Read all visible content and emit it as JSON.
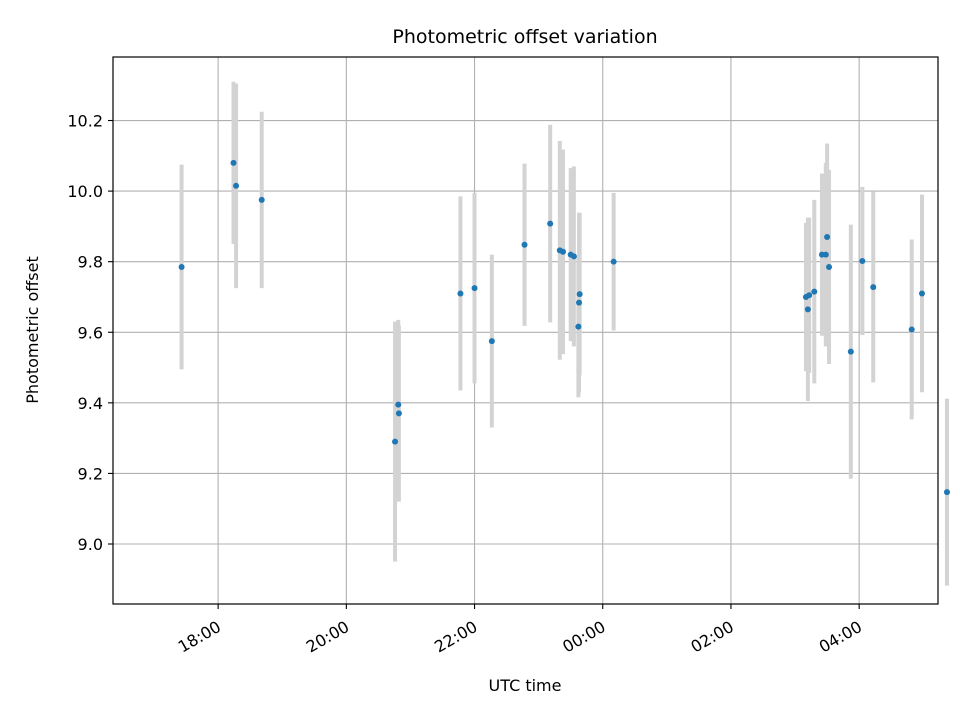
{
  "chart_data": {
    "type": "scatter",
    "title": "Photometric offset variation",
    "xlabel": "UTC time",
    "ylabel": "Photometric offset",
    "grid": true,
    "x_unit": "hours since 00:00 UTC (day 1)",
    "xlim": [
      16.36,
      29.23
    ],
    "ylim": [
      8.83,
      10.38
    ],
    "x_ticks": [
      {
        "value": 18,
        "label": "18:00"
      },
      {
        "value": 20,
        "label": "20:00"
      },
      {
        "value": 22,
        "label": "22:00"
      },
      {
        "value": 24,
        "label": "00:00"
      },
      {
        "value": 26,
        "label": "02:00"
      },
      {
        "value": 28,
        "label": "04:00"
      }
    ],
    "y_ticks": [
      {
        "value": 9.0,
        "label": "9.0"
      },
      {
        "value": 9.2,
        "label": "9.2"
      },
      {
        "value": 9.4,
        "label": "9.4"
      },
      {
        "value": 9.6,
        "label": "9.6"
      },
      {
        "value": 9.8,
        "label": "9.8"
      },
      {
        "value": 10.0,
        "label": "10.0"
      },
      {
        "value": 10.2,
        "label": "10.2"
      }
    ],
    "series": [
      {
        "name": "offset",
        "marker_color": "#1f77b4",
        "errorbar_color": "#d3d3d3",
        "points": [
          {
            "x": 17.43,
            "y": 9.785,
            "err": 0.29
          },
          {
            "x": 18.24,
            "y": 10.08,
            "err": 0.23
          },
          {
            "x": 18.28,
            "y": 10.015,
            "err": 0.29
          },
          {
            "x": 18.68,
            "y": 9.975,
            "err": 0.25
          },
          {
            "x": 20.76,
            "y": 9.29,
            "err": 0.34
          },
          {
            "x": 20.81,
            "y": 9.395,
            "err": 0.24
          },
          {
            "x": 20.82,
            "y": 9.37,
            "err": 0.25
          },
          {
            "x": 21.78,
            "y": 9.71,
            "err": 0.275
          },
          {
            "x": 22.0,
            "y": 9.725,
            "err": 0.27
          },
          {
            "x": 22.27,
            "y": 9.575,
            "err": 0.245
          },
          {
            "x": 22.78,
            "y": 9.848,
            "err": 0.23
          },
          {
            "x": 23.18,
            "y": 9.908,
            "err": 0.28
          },
          {
            "x": 23.33,
            "y": 9.832,
            "err": 0.31
          },
          {
            "x": 23.38,
            "y": 9.828,
            "err": 0.29
          },
          {
            "x": 23.5,
            "y": 9.82,
            "err": 0.245
          },
          {
            "x": 23.55,
            "y": 9.815,
            "err": 0.255
          },
          {
            "x": 23.62,
            "y": 9.616,
            "err": 0.2
          },
          {
            "x": 23.63,
            "y": 9.684,
            "err": 0.255
          },
          {
            "x": 23.64,
            "y": 9.708,
            "err": 0.23
          },
          {
            "x": 24.17,
            "y": 9.8,
            "err": 0.195
          },
          {
            "x": 27.17,
            "y": 9.7,
            "err": 0.21
          },
          {
            "x": 27.2,
            "y": 9.665,
            "err": 0.26
          },
          {
            "x": 27.22,
            "y": 9.705,
            "err": 0.22
          },
          {
            "x": 27.3,
            "y": 9.715,
            "err": 0.26
          },
          {
            "x": 27.42,
            "y": 9.82,
            "err": 0.23
          },
          {
            "x": 27.48,
            "y": 9.82,
            "err": 0.26
          },
          {
            "x": 27.5,
            "y": 9.87,
            "err": 0.265
          },
          {
            "x": 27.53,
            "y": 9.785,
            "err": 0.275
          },
          {
            "x": 27.87,
            "y": 9.545,
            "err": 0.36
          },
          {
            "x": 28.05,
            "y": 9.802,
            "err": 0.21
          },
          {
            "x": 28.22,
            "y": 9.728,
            "err": 0.27
          },
          {
            "x": 28.82,
            "y": 9.608,
            "err": 0.255
          },
          {
            "x": 28.98,
            "y": 9.71,
            "err": 0.28
          },
          {
            "x": 29.37,
            "y": 9.147,
            "err": 0.265
          }
        ]
      }
    ]
  }
}
